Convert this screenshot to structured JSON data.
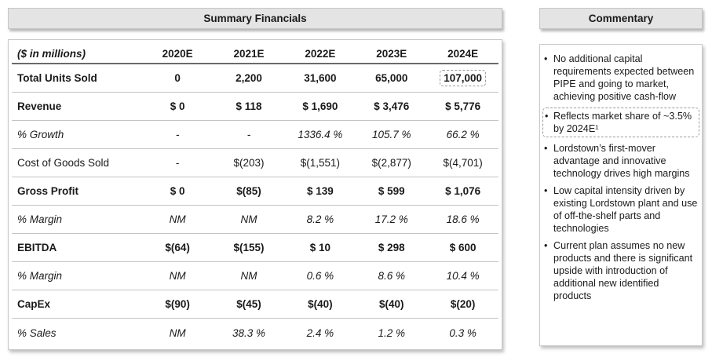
{
  "summary": {
    "title": "Summary Financials",
    "columns": [
      "($ in millions)",
      "2020E",
      "2021E",
      "2022E",
      "2023E",
      "2024E"
    ],
    "rows": [
      {
        "label": "Total Units Sold",
        "values": [
          "0",
          "2,200",
          "31,600",
          "65,000",
          "107,000"
        ]
      },
      {
        "label": "Revenue",
        "values": [
          "$ 0",
          "$ 118",
          "$ 1,690",
          "$ 3,476",
          "$ 5,776"
        ]
      },
      {
        "label": "% Growth",
        "values": [
          "-",
          "-",
          "1336.4 %",
          "105.7 %",
          "66.2 %"
        ]
      },
      {
        "label": "Cost of Goods Sold",
        "values": [
          "-",
          "$(203)",
          "$(1,551)",
          "$(2,877)",
          "$(4,701)"
        ]
      },
      {
        "label": "Gross Profit",
        "values": [
          "$ 0",
          "$(85)",
          "$ 139",
          "$ 599",
          "$ 1,076"
        ]
      },
      {
        "label": "% Margin",
        "values": [
          "NM",
          "NM",
          "8.2 %",
          "17.2 %",
          "18.6 %"
        ]
      },
      {
        "label": "EBITDA",
        "values": [
          "$(64)",
          "$(155)",
          "$ 10",
          "$ 298",
          "$ 600"
        ]
      },
      {
        "label": "% Margin",
        "values": [
          "NM",
          "NM",
          "0.6 %",
          "8.6 %",
          "10.4 %"
        ]
      },
      {
        "label": "CapEx",
        "values": [
          "$(90)",
          "$(45)",
          "$(40)",
          "$(40)",
          "$(20)"
        ]
      },
      {
        "label": "% Sales",
        "values": [
          "NM",
          "38.3 %",
          "2.4 %",
          "1.2 %",
          "0.3 %"
        ]
      }
    ]
  },
  "commentary": {
    "title": "Commentary",
    "bullets": [
      "No additional capital requirements expected between PIPE and going to market, achieving positive cash-flow",
      "Reflects market share of ~3.5% by 2024E¹",
      "Lordstown’s first-mover advantage and innovative technology drives high margins",
      "Low capital intensity driven by existing Lordstown plant and use of off-the-shelf parts and technologies",
      "Current plan assumes no new products and there is significant upside with introduction of additional new identified products"
    ]
  }
}
